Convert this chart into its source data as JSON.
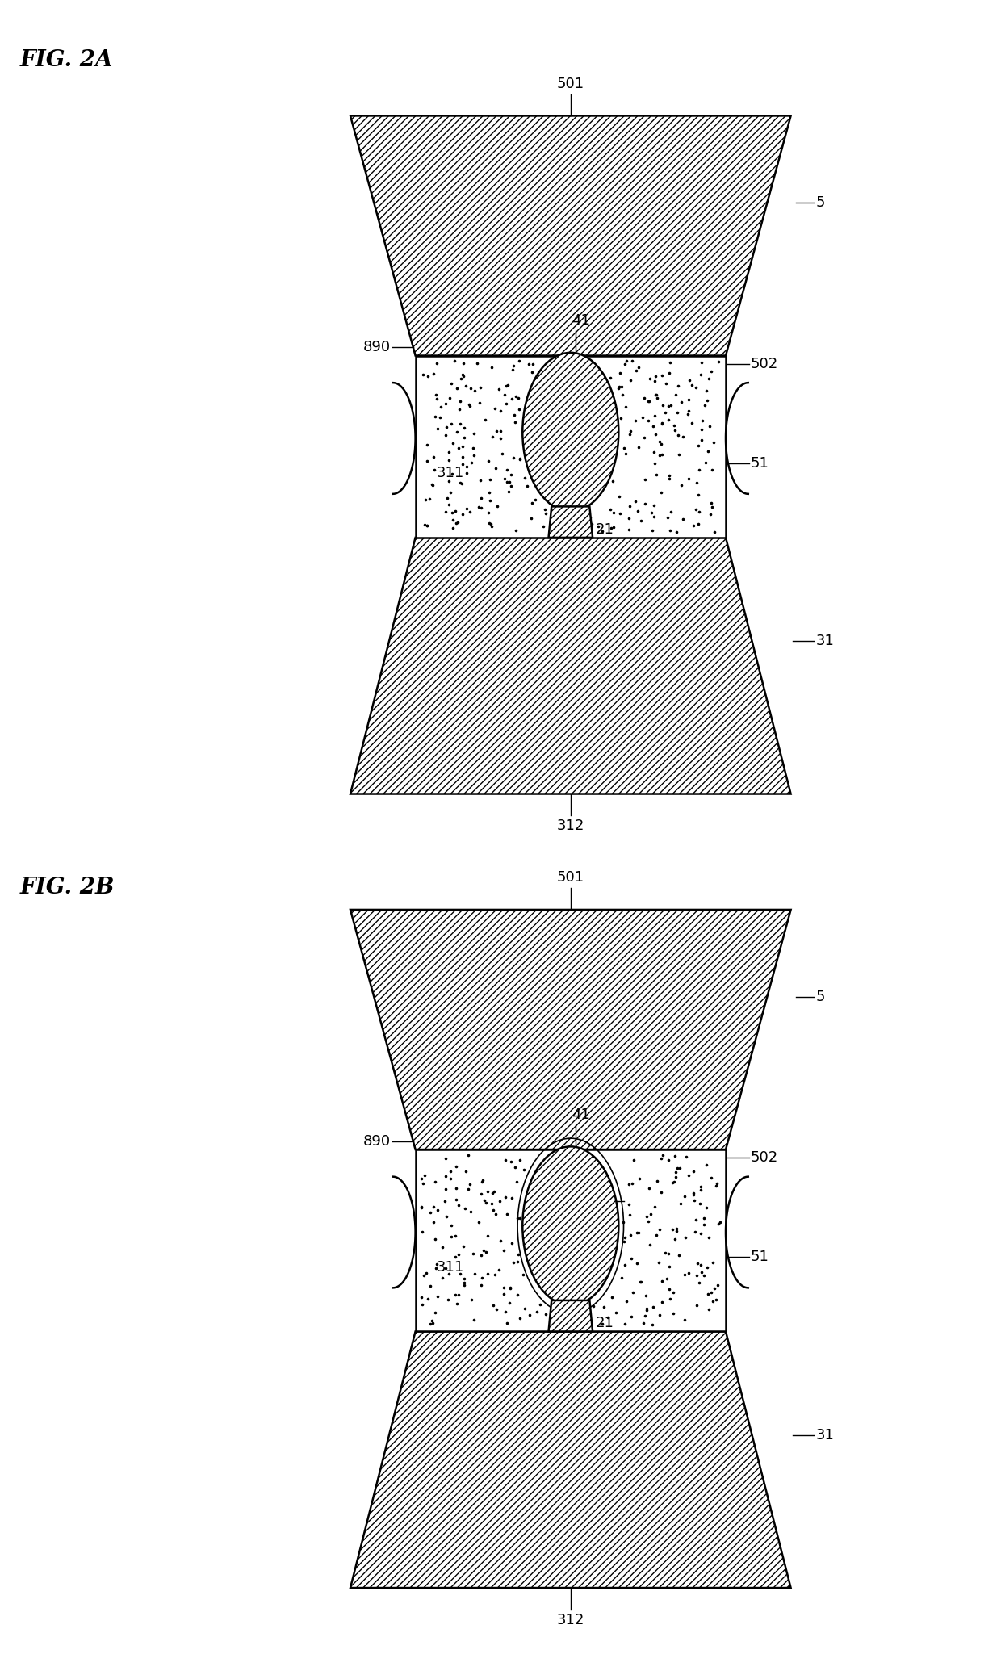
{
  "fig_label_2a": "FIG. 2A",
  "fig_label_2b": "FIG. 2B",
  "bg_color": "#ffffff",
  "line_color": "#000000",
  "label_fontsize": 13,
  "title_fontsize": 20,
  "lw": 1.8
}
